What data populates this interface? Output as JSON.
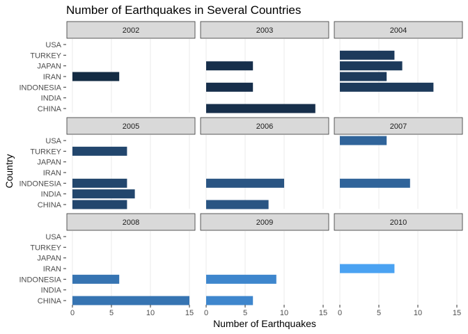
{
  "chart_data": {
    "type": "bar",
    "orientation": "horizontal",
    "title": "Number of Earthquakes in Several Countries",
    "xlabel": "Number of Earthquakes",
    "ylabel": "Country",
    "xlim": [
      0,
      15
    ],
    "x_ticks": [
      0,
      5,
      10,
      15
    ],
    "grid": true,
    "legend": "none",
    "facet_layout": "3x3",
    "categories": [
      "USA",
      "TURKEY",
      "JAPAN",
      "IRAN",
      "INDONESIA",
      "INDIA",
      "CHINA"
    ],
    "panels": [
      {
        "label": "2002",
        "color": "#132b43",
        "values": [
          0,
          0,
          0,
          6,
          0,
          0,
          0
        ]
      },
      {
        "label": "2003",
        "color": "#172f4b",
        "values": [
          0,
          0,
          6,
          0,
          6,
          0,
          14
        ]
      },
      {
        "label": "2004",
        "color": "#1d3a5b",
        "values": [
          0,
          7,
          8,
          6,
          12,
          0,
          0
        ]
      },
      {
        "label": "2005",
        "color": "#22466d",
        "values": [
          0,
          7,
          0,
          0,
          7,
          8,
          7
        ]
      },
      {
        "label": "2006",
        "color": "#2a5583",
        "values": [
          0,
          0,
          0,
          0,
          10,
          0,
          8
        ]
      },
      {
        "label": "2007",
        "color": "#30649a",
        "values": [
          6,
          0,
          0,
          0,
          9,
          0,
          0
        ]
      },
      {
        "label": "2008",
        "color": "#3674b2",
        "values": [
          0,
          0,
          0,
          0,
          6,
          0,
          15
        ]
      },
      {
        "label": "2009",
        "color": "#3e86cd",
        "values": [
          0,
          0,
          0,
          0,
          9,
          0,
          6
        ]
      },
      {
        "label": "2010",
        "color": "#4aa2f2",
        "values": [
          0,
          0,
          0,
          7,
          0,
          0,
          0
        ]
      }
    ]
  }
}
